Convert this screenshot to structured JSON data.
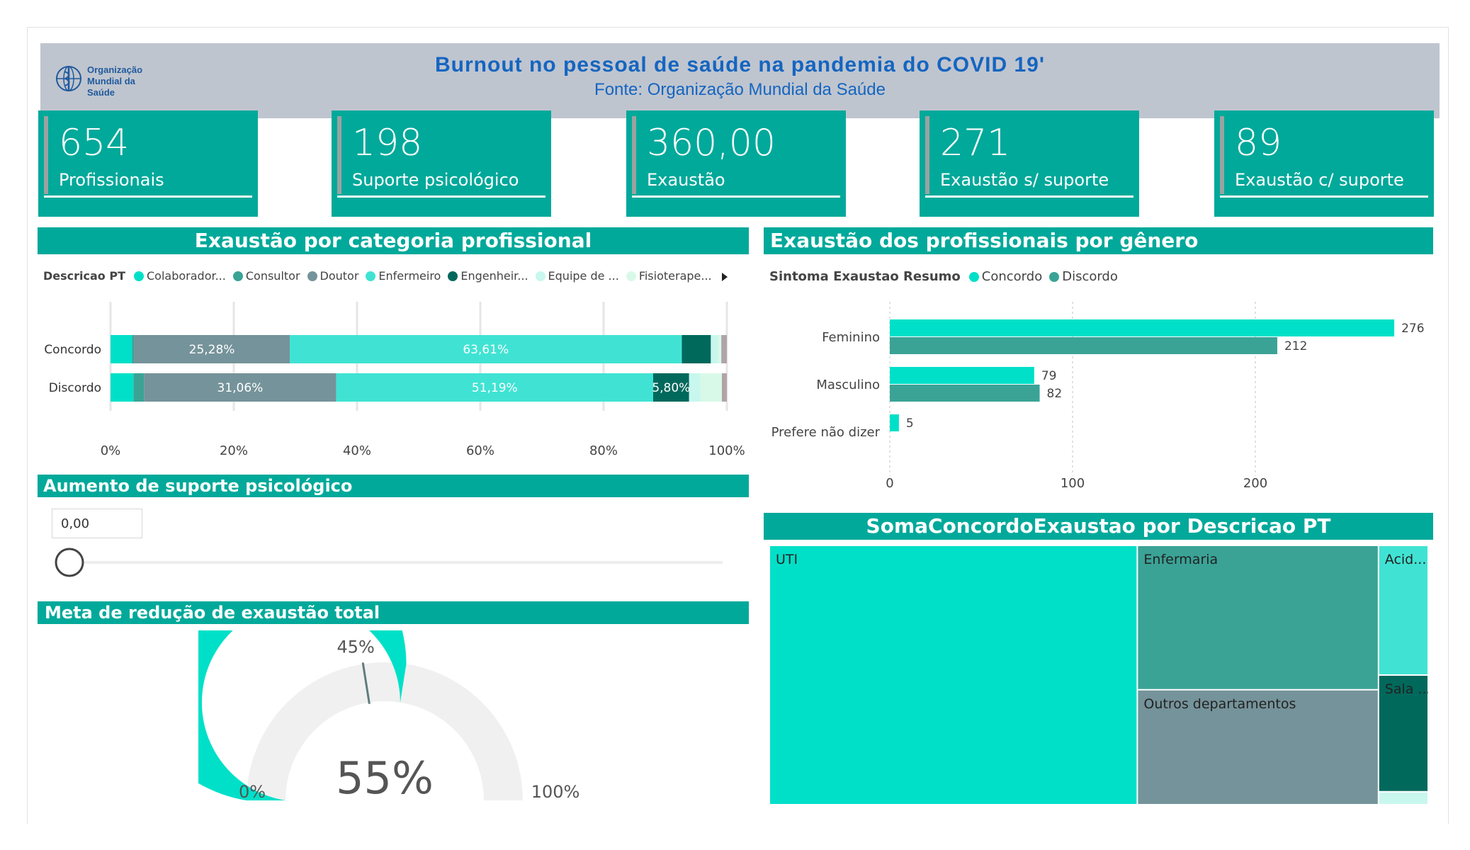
{
  "header": {
    "logo_text_line1": "Organização",
    "logo_text_line2": "Mundial da Saúde",
    "title": "Burnout no pessoal de saúde na pandemia do COVID 19'",
    "subtitle": "Fonte: Organização Mundial da Saúde"
  },
  "kpis": [
    {
      "value": "654",
      "label": "Profissionais"
    },
    {
      "value": "198",
      "label": "Suporte psicológico"
    },
    {
      "value": "360,00",
      "label": "Exaustão"
    },
    {
      "value": "271",
      "label": "Exaustão s/ suporte"
    },
    {
      "value": "89",
      "label": "Exaustão c/ suporte"
    }
  ],
  "sections": {
    "categoria": "Exaustão por categoria profissional",
    "genero": "Exaustão dos profissionais por gênero",
    "suporte": "Aumento de suporte psicológico",
    "meta": "Meta de redução de exaustão total",
    "treemap": "SomaConcordoExaustao por Descricao PT"
  },
  "colors": {
    "accent": "#00a99a",
    "colaborador": "#00e0c8",
    "consultor": "#3aa396",
    "doutor": "#75939a",
    "enfermeiro": "#40e3d3",
    "engenheiro": "#00695c",
    "equipe": "#c8f7ee",
    "fisioterapeuta": "#d9f9e8",
    "concordo": "#00e0c8",
    "discordo": "#3aa396"
  },
  "chart_data": [
    {
      "type": "bar",
      "orientation": "horizontal-stacked-100",
      "title": "Exaustão por categoria profissional",
      "legend_title": "Descricao PT",
      "legend_position": "top",
      "categories": [
        "Concordo",
        "Discordo"
      ],
      "series": [
        {
          "name": "Colaborador...",
          "values": [
            3.5,
            3.7
          ]
        },
        {
          "name": "Consultor",
          "values": [
            0.3,
            1.7
          ]
        },
        {
          "name": "Doutor",
          "values": [
            25.28,
            31.06
          ]
        },
        {
          "name": "Enfermeiro",
          "values": [
            63.61,
            51.19
          ]
        },
        {
          "name": "Engenheir...",
          "values": [
            4.7,
            5.8
          ]
        },
        {
          "name": "Equipe de ...",
          "values": [
            1.2,
            1.8
          ]
        },
        {
          "name": "Fisioterape...",
          "values": [
            0.5,
            3.5
          ]
        },
        {
          "name": "",
          "values": [
            0.9,
            0.8
          ]
        }
      ],
      "data_labels": [
        {
          "category": "Concordo",
          "series": "Doutor",
          "text": "25,28%"
        },
        {
          "category": "Concordo",
          "series": "Enfermeiro",
          "text": "63,61%"
        },
        {
          "category": "Discordo",
          "series": "Doutor",
          "text": "31,06%"
        },
        {
          "category": "Discordo",
          "series": "Enfermeiro",
          "text": "51,19%"
        },
        {
          "category": "Discordo",
          "series": "Engenheir...",
          "text": "5,80%"
        }
      ],
      "x_ticks": [
        "0%",
        "20%",
        "40%",
        "60%",
        "80%",
        "100%"
      ],
      "xlim": [
        0,
        100
      ],
      "grid": true
    },
    {
      "type": "bar",
      "orientation": "horizontal-clustered",
      "title": "Exaustão dos profissionais por gênero",
      "legend_title": "Sintoma Exaustao Resumo",
      "legend_position": "top",
      "categories": [
        "Feminino",
        "Masculino",
        "Prefere não dizer"
      ],
      "series": [
        {
          "name": "Concordo",
          "values": [
            276,
            79,
            5
          ]
        },
        {
          "name": "Discordo",
          "values": [
            212,
            82,
            null
          ]
        }
      ],
      "x_ticks": [
        "0",
        "100",
        "200"
      ],
      "xlim": [
        0,
        280
      ],
      "grid": true
    },
    {
      "type": "gauge",
      "title": "Meta de redução de exaustão total",
      "value": 55,
      "value_label": "55%",
      "target": 45,
      "target_label": "45%",
      "min_label": "0%",
      "max_label": "100%",
      "range": [
        0,
        100
      ]
    },
    {
      "type": "treemap",
      "title": "SomaConcordoExaustao por Descricao PT",
      "items": [
        {
          "label": "UTI",
          "value": 148
        },
        {
          "label": "Enfermaria",
          "value": 54
        },
        {
          "label": "Outros departamentos",
          "value": 43
        },
        {
          "label": "Acid...",
          "value": 10
        },
        {
          "label": "Sala ...",
          "value": 9
        },
        {
          "label": "",
          "value": 1
        }
      ]
    }
  ],
  "slider": {
    "value": "0,00",
    "level": 0
  }
}
